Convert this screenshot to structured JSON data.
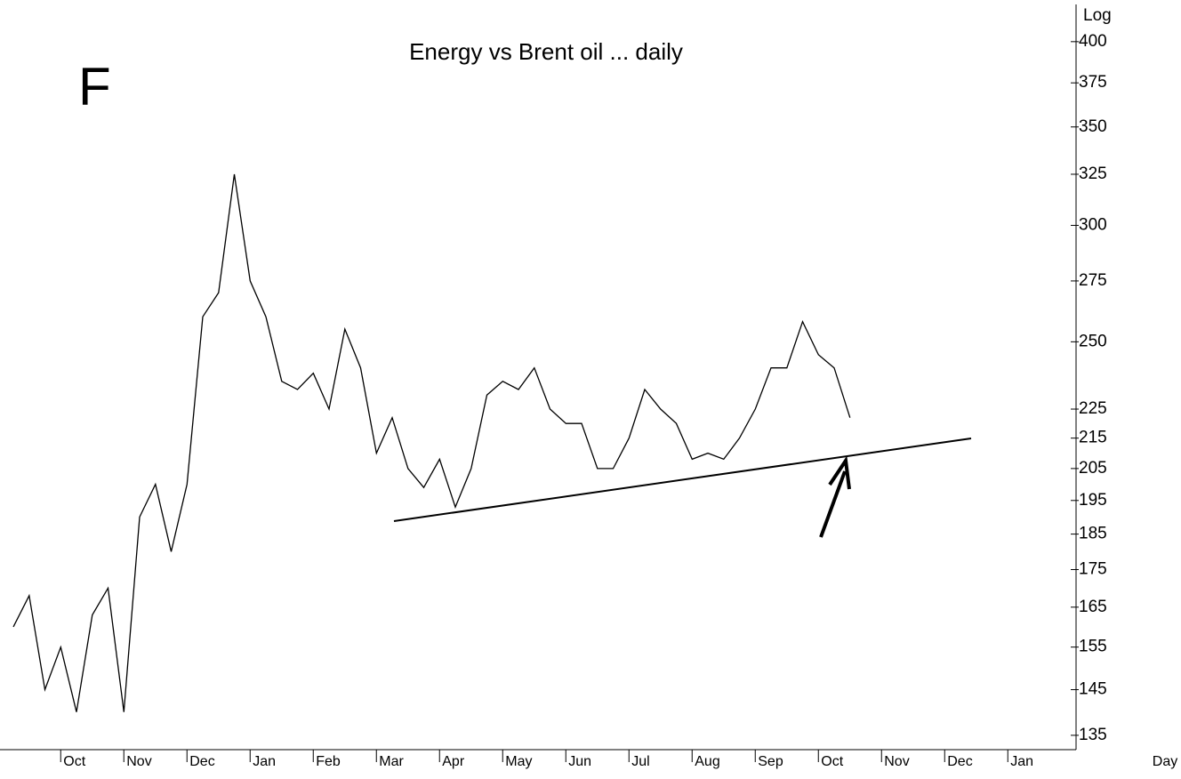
{
  "chart_data": {
    "type": "line",
    "title": "Energy vs Brent oil ... daily",
    "annotation": "F",
    "scale_label": "Log",
    "x_label": "Day",
    "log_scale": true,
    "grid": false,
    "categories": [
      null,
      null,
      null,
      "Oct",
      null,
      null,
      null,
      "Nov",
      null,
      null,
      null,
      "Dec",
      null,
      null,
      null,
      "Jan",
      null,
      null,
      null,
      "Feb",
      null,
      null,
      null,
      "Mar",
      null,
      null,
      null,
      "Apr",
      null,
      null,
      null,
      "May",
      null,
      null,
      null,
      "Jun",
      null,
      null,
      null,
      "Jul",
      null,
      null,
      null,
      "Aug",
      null,
      null,
      null,
      "Sep",
      null,
      null,
      null,
      "Oct",
      null,
      null,
      null,
      "Nov",
      null,
      null,
      null,
      "Dec",
      null,
      null,
      null,
      "Jan",
      null,
      null,
      null,
      null
    ],
    "series": [
      {
        "name": "Energy vs Brent oil",
        "color": "#000000",
        "values": [
          160,
          168,
          145,
          155,
          140,
          163,
          170,
          140,
          190,
          200,
          180,
          200,
          260,
          270,
          325,
          275,
          260,
          235,
          232,
          238,
          225,
          255,
          240,
          210,
          222,
          205,
          199,
          208,
          193,
          205,
          230,
          235,
          232,
          240,
          225,
          220,
          220,
          205,
          205,
          215,
          232,
          225,
          220,
          208,
          210,
          208,
          215,
          225,
          240,
          240,
          258,
          245,
          240,
          222,
          null,
          null,
          null,
          null,
          null,
          null,
          null,
          null,
          null,
          null,
          null,
          null,
          null,
          null
        ]
      }
    ],
    "ylim": [
      132,
      424
    ],
    "yticks": [
      135,
      145,
      155,
      165,
      175,
      185,
      195,
      205,
      215,
      225,
      250,
      275,
      300,
      325,
      350,
      375,
      400
    ]
  }
}
